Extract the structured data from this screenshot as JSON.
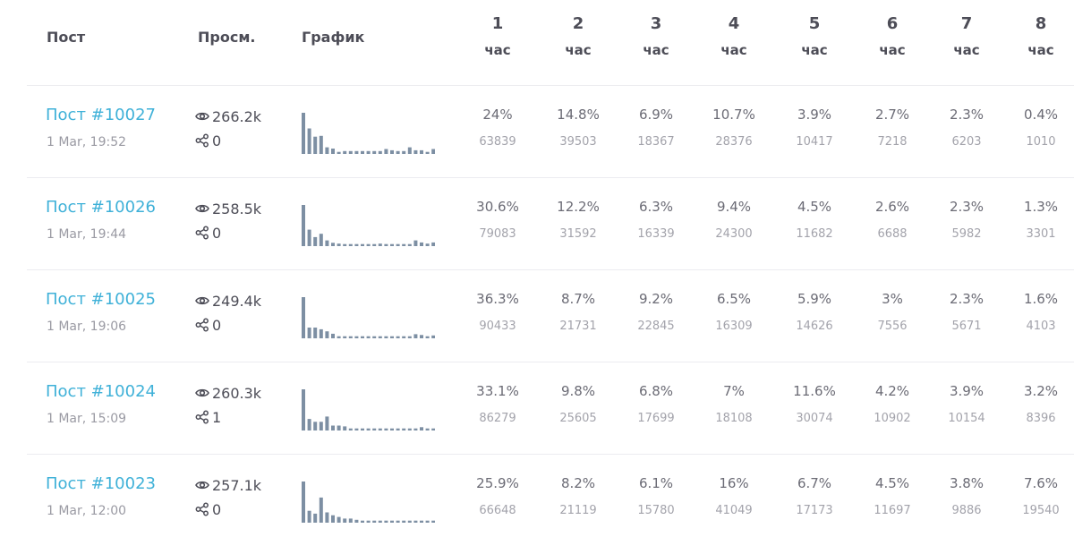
{
  "header": {
    "post": "Пост",
    "views": "Просм.",
    "chart": "График",
    "hour_unit": "час",
    "hours": [
      "1",
      "2",
      "3",
      "4",
      "5",
      "6",
      "7",
      "8"
    ]
  },
  "colors": {
    "link": "#3fb1d8",
    "bar": "#7d8fa3",
    "header_text": "#4d4d57",
    "muted_text": "#9a9aa3",
    "divider": "#ececf0"
  },
  "icons": {
    "views": "eye-icon",
    "shares": "share-icon"
  },
  "rows": [
    {
      "post": "Пост #10027",
      "date": "1 Mar, 19:52",
      "views": "266.2k",
      "shares": "0",
      "percents": [
        "24%",
        "14.8%",
        "6.9%",
        "10.7%",
        "3.9%",
        "2.7%",
        "2.3%",
        "0.4%"
      ],
      "counts": [
        "63839",
        "39503",
        "18367",
        "28376",
        "10417",
        "7218",
        "6203",
        "1010"
      ]
    },
    {
      "post": "Пост #10026",
      "date": "1 Mar, 19:44",
      "views": "258.5k",
      "shares": "0",
      "percents": [
        "30.6%",
        "12.2%",
        "6.3%",
        "9.4%",
        "4.5%",
        "2.6%",
        "2.3%",
        "1.3%"
      ],
      "counts": [
        "79083",
        "31592",
        "16339",
        "24300",
        "11682",
        "6688",
        "5982",
        "3301"
      ]
    },
    {
      "post": "Пост #10025",
      "date": "1 Mar, 19:06",
      "views": "249.4k",
      "shares": "0",
      "percents": [
        "36.3%",
        "8.7%",
        "9.2%",
        "6.5%",
        "5.9%",
        "3%",
        "2.3%",
        "1.6%"
      ],
      "counts": [
        "90433",
        "21731",
        "22845",
        "16309",
        "14626",
        "7556",
        "5671",
        "4103"
      ]
    },
    {
      "post": "Пост #10024",
      "date": "1 Mar, 15:09",
      "views": "260.3k",
      "shares": "1",
      "percents": [
        "33.1%",
        "9.8%",
        "6.8%",
        "7%",
        "11.6%",
        "4.2%",
        "3.9%",
        "3.2%"
      ],
      "counts": [
        "86279",
        "25605",
        "17699",
        "18108",
        "30074",
        "10902",
        "10154",
        "8396"
      ]
    },
    {
      "post": "Пост #10023",
      "date": "1 Mar, 12:00",
      "views": "257.1k",
      "shares": "0",
      "percents": [
        "25.9%",
        "8.2%",
        "6.1%",
        "16%",
        "6.7%",
        "4.5%",
        "3.8%",
        "7.6%"
      ],
      "counts": [
        "66648",
        "21119",
        "15780",
        "41049",
        "17173",
        "11697",
        "9886",
        "19540"
      ]
    }
  ],
  "sparklines": [
    [
      1.0,
      0.62,
      0.42,
      0.44,
      0.16,
      0.13,
      0.05,
      0.07,
      0.07,
      0.07,
      0.07,
      0.07,
      0.07,
      0.07,
      0.12,
      0.09,
      0.07,
      0.07,
      0.16,
      0.09,
      0.09,
      0.05,
      0.12
    ],
    [
      1.0,
      0.4,
      0.22,
      0.3,
      0.14,
      0.08,
      0.06,
      0.05,
      0.05,
      0.05,
      0.05,
      0.05,
      0.05,
      0.06,
      0.05,
      0.05,
      0.05,
      0.05,
      0.05,
      0.14,
      0.09,
      0.06,
      0.09
    ],
    [
      1.0,
      0.26,
      0.26,
      0.22,
      0.17,
      0.11,
      0.05,
      0.05,
      0.05,
      0.05,
      0.05,
      0.05,
      0.05,
      0.05,
      0.05,
      0.05,
      0.05,
      0.05,
      0.05,
      0.1,
      0.08,
      0.05,
      0.07
    ],
    [
      1.0,
      0.28,
      0.21,
      0.21,
      0.34,
      0.12,
      0.12,
      0.1,
      0.05,
      0.05,
      0.05,
      0.05,
      0.05,
      0.05,
      0.05,
      0.05,
      0.05,
      0.05,
      0.05,
      0.05,
      0.08,
      0.05,
      0.05
    ],
    [
      1.0,
      0.29,
      0.22,
      0.61,
      0.25,
      0.18,
      0.14,
      0.1,
      0.1,
      0.07,
      0.05,
      0.05,
      0.05,
      0.05,
      0.05,
      0.05,
      0.05,
      0.05,
      0.05,
      0.05,
      0.05,
      0.05,
      0.05
    ]
  ]
}
